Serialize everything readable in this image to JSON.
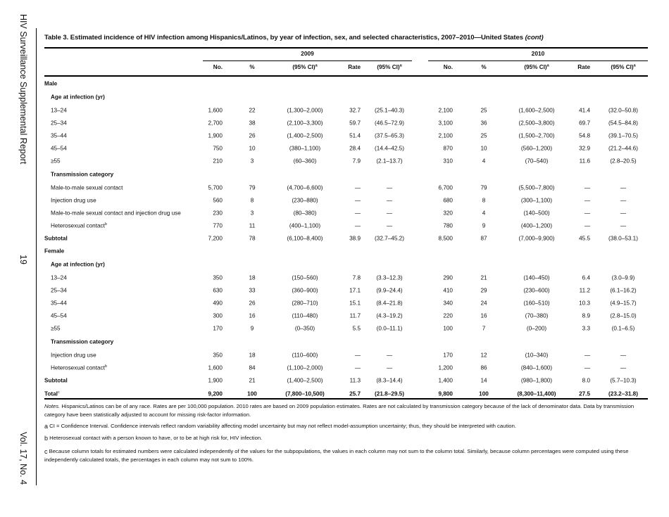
{
  "sidebar": {
    "report_title": "HIV Surveillance Supplemental Report",
    "page_number": "19",
    "volume": "Vol. 17, No. 4"
  },
  "table": {
    "title": "Table 3.  Estimated incidence of HIV infection among Hispanics/Latinos, by year of infection, sex, and selected characteristics, 2007–2010—United States",
    "title_suffix": "(cont)",
    "years": [
      "2009",
      "2010"
    ],
    "columns": [
      "No.",
      "%",
      "(95% CI)",
      "Rate",
      "(95% CI)"
    ],
    "ci_footnote": "a",
    "rows": [
      {
        "type": "grp",
        "label": "Male"
      },
      {
        "type": "sub",
        "label": "Age at infection (yr)"
      },
      {
        "type": "item",
        "label": "13–24",
        "v": [
          "1,600",
          "22",
          "(1,300–2,000)",
          "32.7",
          "(25.1–40.3)",
          "2,100",
          "25",
          "(1,600–2,500)",
          "41.4",
          "(32.0–50.8)"
        ]
      },
      {
        "type": "item",
        "label": "25–34",
        "v": [
          "2,700",
          "38",
          "(2,100–3,300)",
          "59.7",
          "(46.5–72.9)",
          "3,100",
          "36",
          "(2,500–3,800)",
          "69.7",
          "(54.5–84.8)"
        ]
      },
      {
        "type": "item",
        "label": "35–44",
        "v": [
          "1,900",
          "26",
          "(1,400–2,500)",
          "51.4",
          "(37.5–65.3)",
          "2,100",
          "25",
          "(1,500–2,700)",
          "54.8",
          "(39.1–70.5)"
        ]
      },
      {
        "type": "item",
        "label": "45–54",
        "v": [
          "750",
          "10",
          "(380–1,100)",
          "28.4",
          "(14.4–42.5)",
          "870",
          "10",
          "(560–1,200)",
          "32.9",
          "(21.2–44.6)"
        ]
      },
      {
        "type": "item",
        "label": "≥55",
        "v": [
          "210",
          "3",
          "(60–360)",
          "7.9",
          "(2.1–13.7)",
          "310",
          "4",
          "(70–540)",
          "11.6",
          "(2.8–20.5)"
        ]
      },
      {
        "type": "sub",
        "label": "Transmission category"
      },
      {
        "type": "item",
        "label": "Male-to-male sexual contact",
        "v": [
          "5,700",
          "79",
          "(4,700–6,600)",
          "—",
          "—",
          "6,700",
          "79",
          "(5,500–7,800)",
          "—",
          "—"
        ]
      },
      {
        "type": "item",
        "label": "Injection drug use",
        "v": [
          "560",
          "8",
          "(230–880)",
          "—",
          "—",
          "680",
          "8",
          "(300–1,100)",
          "—",
          "—"
        ]
      },
      {
        "type": "item",
        "label": "Male-to-male sexual contact and injection drug use",
        "v": [
          "230",
          "3",
          "(80–380)",
          "—",
          "—",
          "320",
          "4",
          "(140–500)",
          "—",
          "—"
        ]
      },
      {
        "type": "item",
        "label": "Heterosexual contact",
        "sup": "b",
        "v": [
          "770",
          "11",
          "(400–1,100)",
          "—",
          "—",
          "780",
          "9",
          "(400–1,200)",
          "—",
          "—"
        ]
      },
      {
        "type": "grp",
        "label": "Subtotal",
        "v": [
          "7,200",
          "78",
          "(6,100–8,400)",
          "38.9",
          "(32.7–45.2)",
          "8,500",
          "87",
          "(7,000–9,900)",
          "45.5",
          "(38.0–53.1)"
        ]
      },
      {
        "type": "grp",
        "label": "Female"
      },
      {
        "type": "sub",
        "label": "Age at infection (yr)"
      },
      {
        "type": "item",
        "label": "13–24",
        "v": [
          "350",
          "18",
          "(150–560)",
          "7.8",
          "(3.3–12.3)",
          "290",
          "21",
          "(140–450)",
          "6.4",
          "(3.0–9.9)"
        ]
      },
      {
        "type": "item",
        "label": "25–34",
        "v": [
          "630",
          "33",
          "(360–900)",
          "17.1",
          "(9.9–24.4)",
          "410",
          "29",
          "(230–600)",
          "11.2",
          "(6.1–16.2)"
        ]
      },
      {
        "type": "item",
        "label": "35–44",
        "v": [
          "490",
          "26",
          "(280–710)",
          "15.1",
          "(8.4–21.8)",
          "340",
          "24",
          "(160–510)",
          "10.3",
          "(4.9–15.7)"
        ]
      },
      {
        "type": "item",
        "label": "45–54",
        "v": [
          "300",
          "16",
          "(110–480)",
          "11.7",
          "(4.3–19.2)",
          "220",
          "16",
          "(70–380)",
          "8.9",
          "(2.8–15.0)"
        ]
      },
      {
        "type": "item",
        "label": "≥55",
        "v": [
          "170",
          "9",
          "(0–350)",
          "5.5",
          "(0.0–11.1)",
          "100",
          "7",
          "(0–200)",
          "3.3",
          "(0.1–6.5)"
        ]
      },
      {
        "type": "sub",
        "label": "Transmission category"
      },
      {
        "type": "item",
        "label": "Injection drug use",
        "v": [
          "350",
          "18",
          "(110–600)",
          "—",
          "—",
          "170",
          "12",
          "(10–340)",
          "—",
          "—"
        ]
      },
      {
        "type": "item",
        "label": "Heterosexual contact",
        "sup": "b",
        "v": [
          "1,600",
          "84",
          "(1,100–2,000)",
          "—",
          "—",
          "1,200",
          "86",
          "(840–1,600)",
          "—",
          "—"
        ]
      },
      {
        "type": "grp",
        "label": "Subtotal",
        "v": [
          "1,900",
          "21",
          "(1,400–2,500)",
          "11.3",
          "(8.3–14.4)",
          "1,400",
          "14",
          "(980–1,800)",
          "8.0",
          "(5.7–10.3)"
        ]
      },
      {
        "type": "total",
        "label": "Total",
        "sup": "c",
        "v": [
          "9,200",
          "100",
          "(7,800–10,500)",
          "25.7",
          "(21.8–29.5)",
          "9,800",
          "100",
          "(8,300–11,400)",
          "27.5",
          "(23.2–31.8)"
        ]
      }
    ]
  },
  "notes": {
    "notes_label": "Notes.",
    "notes_text": " Hispanics/Latinos can be of any race. Rates are per 100,000 population. 2010 rates are based on 2009 population estimates. Rates are not calculated by transmission category because of the lack of denominator data. Data by transmission category have been statistically adjusted to account for missing risk-factor information.",
    "footnotes": [
      {
        "mark": "a",
        "text": "CI = Confidence Interval. Confidence intervals reflect random variability affecting model uncertainty but may not reflect model-assumption uncertainty; thus, they should be interpreted with caution."
      },
      {
        "mark": "b",
        "text": "Heterosexual contact with a person known to have, or to be at high risk for, HIV infection."
      },
      {
        "mark": "c",
        "text": "Because column totals for estimated numbers were calculated independently of the values for the subpopulations, the values in each column may not sum to the column total. Similarly, because column percentages were computed using these independently calculated totals, the percentages in each column may not sum to 100%."
      }
    ]
  }
}
